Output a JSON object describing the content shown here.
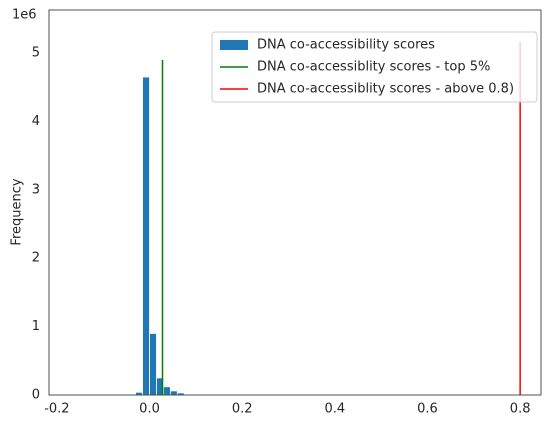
{
  "chart_data": {
    "type": "histogram",
    "y_label": "Frequency",
    "y_offset_label": "1e6",
    "bins": [
      -0.03,
      -0.015,
      0,
      0.015,
      0.03,
      0.045,
      0.06,
      0.075,
      0.09
    ],
    "values": [
      0.04,
      4.65,
      0.9,
      0.25,
      0.12,
      0.06,
      0.03,
      0.01
    ],
    "color": "#1f77b4",
    "series_name": "DNA co-accessibility scores",
    "lines": [
      {
        "name": "DNA co-accessiblity scores - top 5%",
        "color": "#008000",
        "x": 0.028,
        "ymax": 4.9
      },
      {
        "name": "DNA co-accessiblity scores - above 0.8)",
        "color": "#ff0000",
        "x": 0.8,
        "ymax": 5.16
      }
    ],
    "xlim": [
      -0.217,
      0.845
    ],
    "ylim": [
      0,
      5.63
    ],
    "xticks": [
      -0.2,
      {
        "value": 0,
        "label": "0.0"
      },
      0.2,
      0.4,
      0.6,
      0.8
    ],
    "yticks": [
      0,
      1,
      2,
      3,
      4,
      5
    ],
    "legend": "upper right"
  }
}
